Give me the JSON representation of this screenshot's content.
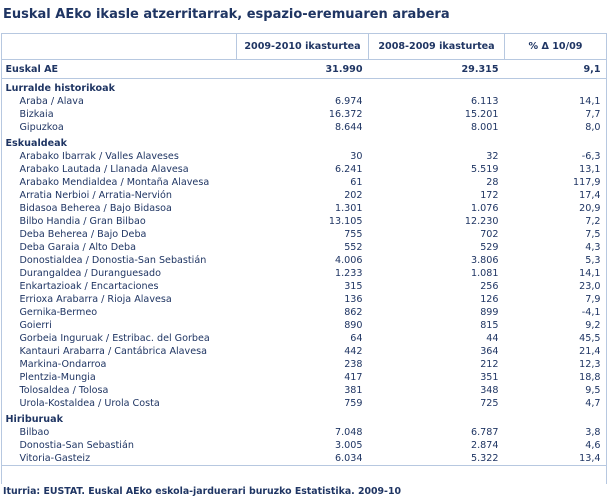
{
  "title": "Euskal AEko ikasle atzerritarrak, espazio-eremuaren arabera",
  "table": {
    "header": [
      "",
      "2009-2010 ikasturtea",
      "2008-2009 ikasturtea",
      "% Δ  10/09"
    ],
    "total": [
      "Euskal AE",
      "31.990",
      "29.315",
      "9,1"
    ],
    "groups": [
      {
        "title": "Lurralde historikoak",
        "rows": [
          [
            "Araba / Alava",
            "6.974",
            "6.113",
            "14,1"
          ],
          [
            "Bizkaia",
            "16.372",
            "15.201",
            "7,7"
          ],
          [
            "Gipuzkoa",
            "8.644",
            "8.001",
            "8,0"
          ]
        ]
      },
      {
        "title": "Eskualdeak",
        "rows": [
          [
            "Arabako Ibarrak / Valles Alaveses",
            "30",
            "32",
            "-6,3"
          ],
          [
            "Arabako Lautada / Llanada Alavesa",
            "6.241",
            "5.519",
            "13,1"
          ],
          [
            "Arabako Mendialdea / Montaña Alavesa",
            "61",
            "28",
            "117,9"
          ],
          [
            "Arratia Nerbioi / Arratia-Nervión",
            "202",
            "172",
            "17,4"
          ],
          [
            "Bidasoa Beherea / Bajo Bidasoa",
            "1.301",
            "1.076",
            "20,9"
          ],
          [
            "Bilbo Handia / Gran Bilbao",
            "13.105",
            "12.230",
            "7,2"
          ],
          [
            "Deba Beherea / Bajo Deba",
            "755",
            "702",
            "7,5"
          ],
          [
            "Deba Garaia / Alto Deba",
            "552",
            "529",
            "4,3"
          ],
          [
            "Donostialdea / Donostia-San Sebastián",
            "4.006",
            "3.806",
            "5,3"
          ],
          [
            "Durangaldea / Duranguesado",
            "1.233",
            "1.081",
            "14,1"
          ],
          [
            "Enkartazioak / Encartaciones",
            "315",
            "256",
            "23,0"
          ],
          [
            "Errioxa Arabarra / Rioja Alavesa",
            "136",
            "126",
            "7,9"
          ],
          [
            "Gernika-Bermeo",
            "862",
            "899",
            "-4,1"
          ],
          [
            "Goierri",
            "890",
            "815",
            "9,2"
          ],
          [
            "Gorbeia Inguruak / Estribac. del Gorbea",
            "64",
            "44",
            "45,5"
          ],
          [
            "Kantauri Arabarra / Cantábrica Alavesa",
            "442",
            "364",
            "21,4"
          ],
          [
            "Markina-Ondarroa",
            "238",
            "212",
            "12,3"
          ],
          [
            "Plentzia-Mungia",
            "417",
            "351",
            "18,8"
          ],
          [
            "Tolosaldea / Tolosa",
            "381",
            "348",
            "9,5"
          ],
          [
            "Urola-Kostaldea / Urola Costa",
            "759",
            "725",
            "4,7"
          ]
        ]
      },
      {
        "title": "Hiriburuak",
        "rows": [
          [
            "Bilbao",
            "7.048",
            "6.787",
            "3,8"
          ],
          [
            "Donostia-San Sebastián",
            "3.005",
            "2.874",
            "4,6"
          ],
          [
            "Vitoria-Gasteiz",
            "6.034",
            "5.322",
            "13,4"
          ]
        ]
      }
    ]
  },
  "source": "Iturria: EUSTAT. Euskal AEko eskola-jarduerari buruzko Estatistika. 2009-10"
}
